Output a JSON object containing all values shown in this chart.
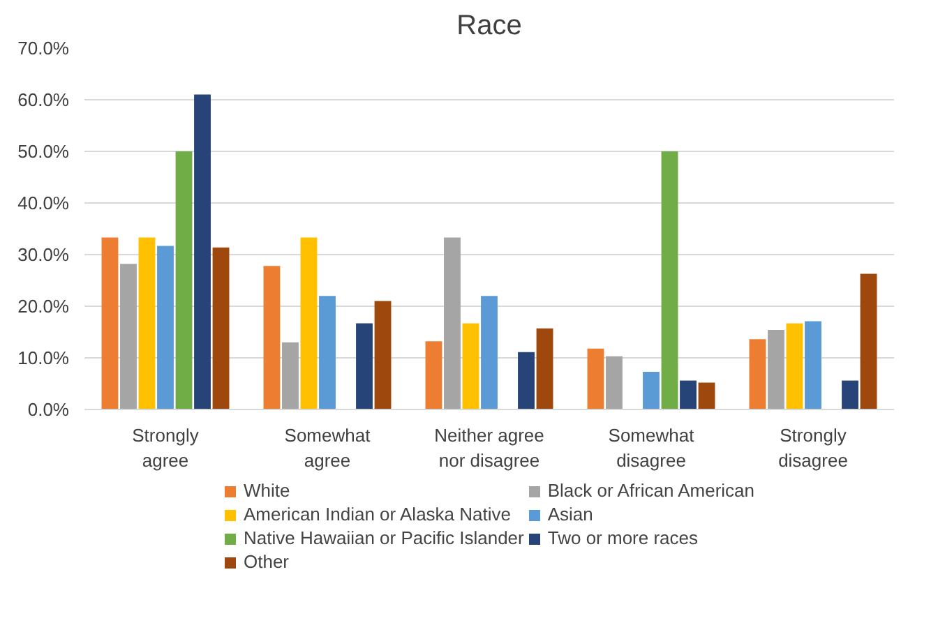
{
  "chart_data": {
    "type": "bar",
    "title": "Race",
    "categories": [
      "Strongly agree",
      "Somewhat agree",
      "Neither agree nor disagree",
      "Somewhat disagree",
      "Strongly disagree"
    ],
    "series": [
      {
        "name": "White",
        "color": "#ed7d31",
        "values": [
          33.3,
          27.8,
          13.2,
          11.8,
          13.6
        ]
      },
      {
        "name": "Black or African American",
        "color": "#a5a5a5",
        "values": [
          28.2,
          13.0,
          33.3,
          10.3,
          15.4
        ]
      },
      {
        "name": "American Indian or Alaska Native",
        "color": "#ffc000",
        "values": [
          33.3,
          33.3,
          16.7,
          0,
          16.7
        ]
      },
      {
        "name": "Asian",
        "color": "#5b9bd5",
        "values": [
          31.7,
          22.0,
          22.0,
          7.3,
          17.1
        ]
      },
      {
        "name": "Native Hawaiian or Pacific Islander",
        "color": "#70ad47",
        "values": [
          50.0,
          0,
          0,
          50.0,
          0
        ]
      },
      {
        "name": "Two or more races",
        "color": "#264478",
        "values": [
          61.0,
          16.7,
          11.1,
          5.6,
          5.6
        ]
      },
      {
        "name": "Other",
        "color": "#9e480e",
        "values": [
          31.4,
          21.0,
          15.7,
          5.2,
          26.3
        ]
      }
    ],
    "ylim": [
      0,
      70
    ],
    "yticks": [
      {
        "value": 0,
        "label": "0.0%"
      },
      {
        "value": 10,
        "label": "10.0%"
      },
      {
        "value": 20,
        "label": "20.0%"
      },
      {
        "value": 30,
        "label": "30.0%"
      },
      {
        "value": 40,
        "label": "40.0%"
      },
      {
        "value": 50,
        "label": "50.0%"
      },
      {
        "value": 60,
        "label": "60.0%"
      },
      {
        "value": 70,
        "label": "70.0%"
      }
    ],
    "grid": "y",
    "legend": "bottom"
  }
}
